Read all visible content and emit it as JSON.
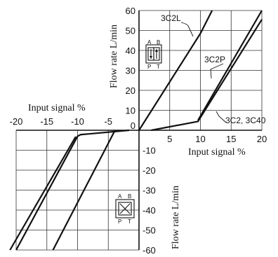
{
  "chart_data": {
    "type": "line",
    "x_axis": {
      "range": [
        -20,
        20
      ],
      "ticks_positive": [
        5,
        10,
        15,
        20
      ],
      "ticks_negative": [
        -20,
        -15,
        -10,
        -5
      ],
      "label_negative": "Input signal   %",
      "label_positive": "Input signal   %"
    },
    "y_axis": {
      "range": [
        -60,
        60
      ],
      "ticks_positive": [
        10,
        20,
        30,
        40,
        50,
        60
      ],
      "ticks_negative": [
        -10,
        -20,
        -30,
        -40,
        -50,
        -60
      ],
      "zero_label": "0",
      "label_positive": "Flow rate   L/min",
      "label_negative": "Flow rate   L/min"
    },
    "grid": true,
    "series": [
      {
        "name": "3C2L",
        "points": [
          [
            0,
            0
          ],
          [
            10,
            48.5
          ],
          [
            11.9,
            60
          ]
        ]
      },
      {
        "name": "3C2P",
        "points": [
          [
            9.6,
            5
          ],
          [
            20,
            60
          ]
        ]
      },
      {
        "name": "3C2, 3C40",
        "points": [
          [
            2,
            0
          ],
          [
            9.6,
            4.4
          ],
          [
            20,
            55.5
          ]
        ]
      },
      {
        "name": "",
        "points": [
          [
            -1.6,
            0
          ],
          [
            -9.5,
            -2.2
          ],
          [
            -10,
            -3
          ],
          [
            -20,
            -60
          ]
        ]
      },
      {
        "name": "",
        "points": [
          [
            -10.3,
            -3.2
          ],
          [
            -21,
            -60
          ]
        ]
      },
      {
        "name": "",
        "points": [
          [
            -3.9,
            0
          ],
          [
            -14,
            -60
          ]
        ]
      }
    ],
    "annotations": [
      "3C2L",
      "3C2P",
      "3C2, 3C40"
    ],
    "valve_symbol_labels_top": [
      "A",
      "B",
      "P",
      "T"
    ],
    "valve_symbol_labels_bottom": [
      "A",
      "B",
      "P",
      "T"
    ]
  }
}
